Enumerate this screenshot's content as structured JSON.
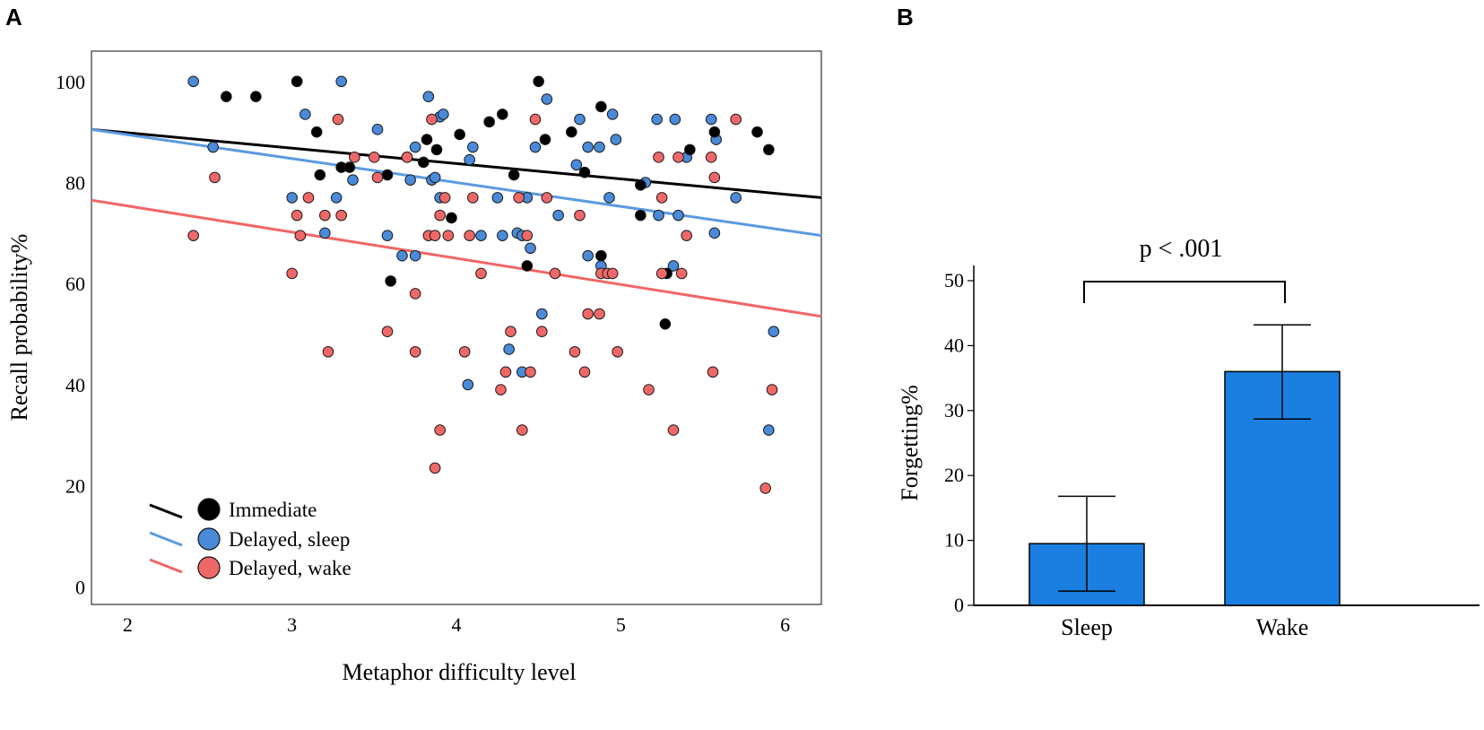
{
  "panels": {
    "a_label": "A",
    "b_label": "B"
  },
  "colors": {
    "immediate": "#000000",
    "sleep": "#4a8ad8",
    "wake": "#ef6868",
    "line_immediate": "#000000",
    "line_sleep": "#5b9be0",
    "line_wake": "#f26666",
    "bar": "#1a7fe0"
  },
  "chart_data": [
    {
      "type": "scatter",
      "title": "",
      "xlabel": "Metaphor difficulty level",
      "ylabel": "Recall probability%",
      "xlim": [
        1.78,
        6.22
      ],
      "ylim": [
        -3.5,
        106
      ],
      "xticks": [
        2,
        3,
        4,
        5,
        6
      ],
      "yticks": [
        0,
        20,
        40,
        60,
        80,
        100
      ],
      "legend": {
        "placement": "bottom-left",
        "entries": [
          "Immediate",
          "Delayed, sleep",
          "Delayed, wake"
        ]
      },
      "series": [
        {
          "name": "Immediate",
          "color_key": "immediate",
          "fit_line": {
            "x": [
              1.78,
              6.22
            ],
            "y": [
              90.5,
              77.0
            ],
            "color_key": "line_immediate"
          },
          "points": [
            [
              2.6,
              97
            ],
            [
              2.78,
              97
            ],
            [
              3.03,
              100
            ],
            [
              3.15,
              90
            ],
            [
              3.17,
              81.5
            ],
            [
              3.3,
              83
            ],
            [
              3.35,
              83
            ],
            [
              3.58,
              81.5
            ],
            [
              3.6,
              60.5
            ],
            [
              3.7,
              85
            ],
            [
              3.8,
              84
            ],
            [
              3.82,
              88.5
            ],
            [
              3.88,
              86.5
            ],
            [
              3.97,
              73
            ],
            [
              4.02,
              89.5
            ],
            [
              4.2,
              92
            ],
            [
              4.28,
              93.5
            ],
            [
              4.35,
              81.5
            ],
            [
              4.43,
              63.5
            ],
            [
              4.5,
              100
            ],
            [
              4.54,
              88.5
            ],
            [
              4.7,
              90
            ],
            [
              4.78,
              82
            ],
            [
              4.88,
              95
            ],
            [
              4.88,
              65.5
            ],
            [
              5.12,
              79.5
            ],
            [
              5.12,
              73.5
            ],
            [
              5.27,
              52
            ],
            [
              5.28,
              62
            ],
            [
              5.42,
              86.5
            ],
            [
              5.57,
              90
            ],
            [
              5.83,
              90
            ],
            [
              5.9,
              86.5
            ]
          ]
        },
        {
          "name": "Delayed, sleep",
          "color_key": "sleep",
          "fit_line": {
            "x": [
              1.78,
              6.22
            ],
            "y": [
              90.5,
              69.5
            ],
            "color_key": "line_sleep"
          },
          "points": [
            [
              2.4,
              100
            ],
            [
              2.52,
              87
            ],
            [
              3.0,
              77
            ],
            [
              3.03,
              100
            ],
            [
              3.08,
              93.5
            ],
            [
              3.2,
              70
            ],
            [
              3.27,
              77
            ],
            [
              3.3,
              100
            ],
            [
              3.37,
              80.5
            ],
            [
              3.52,
              90.5
            ],
            [
              3.58,
              69.5
            ],
            [
              3.67,
              65.5
            ],
            [
              3.72,
              80.5
            ],
            [
              3.75,
              87
            ],
            [
              3.75,
              65.5
            ],
            [
              3.83,
              97
            ],
            [
              3.85,
              80.5
            ],
            [
              3.87,
              81
            ],
            [
              3.9,
              77
            ],
            [
              3.9,
              93
            ],
            [
              3.92,
              93.5
            ],
            [
              4.08,
              84.5
            ],
            [
              4.1,
              87
            ],
            [
              4.15,
              69.5
            ],
            [
              4.25,
              77
            ],
            [
              4.28,
              69.5
            ],
            [
              4.32,
              47
            ],
            [
              4.37,
              70
            ],
            [
              4.4,
              69.5
            ],
            [
              4.4,
              42.5
            ],
            [
              4.43,
              77
            ],
            [
              4.45,
              67
            ],
            [
              4.48,
              87
            ],
            [
              4.52,
              54
            ],
            [
              4.55,
              96.5
            ],
            [
              4.62,
              73.5
            ],
            [
              4.73,
              83.5
            ],
            [
              4.75,
              92.5
            ],
            [
              4.8,
              87
            ],
            [
              4.8,
              65.5
            ],
            [
              4.87,
              87
            ],
            [
              4.88,
              63.5
            ],
            [
              4.93,
              77
            ],
            [
              4.95,
              93.5
            ],
            [
              4.97,
              88.5
            ],
            [
              5.15,
              80
            ],
            [
              5.22,
              92.5
            ],
            [
              5.23,
              73.5
            ],
            [
              5.32,
              63.5
            ],
            [
              5.33,
              92.5
            ],
            [
              5.35,
              73.5
            ],
            [
              5.4,
              85
            ],
            [
              5.55,
              92.5
            ],
            [
              5.57,
              70
            ],
            [
              5.58,
              88.5
            ],
            [
              5.7,
              77
            ],
            [
              5.9,
              31
            ],
            [
              5.93,
              50.5
            ],
            [
              4.07,
              40
            ]
          ]
        },
        {
          "name": "Delayed, wake",
          "color_key": "wake",
          "fit_line": {
            "x": [
              1.78,
              6.22
            ],
            "y": [
              76.5,
              53.5
            ],
            "color_key": "line_wake"
          },
          "points": [
            [
              2.4,
              69.5
            ],
            [
              2.53,
              81
            ],
            [
              3.0,
              62
            ],
            [
              3.03,
              73.5
            ],
            [
              3.05,
              69.5
            ],
            [
              3.1,
              77
            ],
            [
              3.2,
              73.5
            ],
            [
              3.22,
              46.5
            ],
            [
              3.28,
              92.5
            ],
            [
              3.3,
              73.5
            ],
            [
              3.38,
              85
            ],
            [
              3.5,
              85
            ],
            [
              3.52,
              81
            ],
            [
              3.58,
              50.5
            ],
            [
              3.7,
              85
            ],
            [
              3.75,
              58
            ],
            [
              3.75,
              46.5
            ],
            [
              3.83,
              69.5
            ],
            [
              3.85,
              92.5
            ],
            [
              3.87,
              69.5
            ],
            [
              3.87,
              23.5
            ],
            [
              3.9,
              31
            ],
            [
              3.9,
              73.5
            ],
            [
              3.93,
              77
            ],
            [
              3.95,
              69.5
            ],
            [
              4.05,
              46.5
            ],
            [
              4.08,
              69.5
            ],
            [
              4.1,
              77
            ],
            [
              4.15,
              62
            ],
            [
              4.27,
              39
            ],
            [
              4.3,
              42.5
            ],
            [
              4.33,
              50.5
            ],
            [
              4.38,
              77
            ],
            [
              4.4,
              31
            ],
            [
              4.43,
              69.5
            ],
            [
              4.45,
              42.5
            ],
            [
              4.48,
              92.5
            ],
            [
              4.52,
              50.5
            ],
            [
              4.55,
              77
            ],
            [
              4.6,
              62
            ],
            [
              4.72,
              46.5
            ],
            [
              4.75,
              73.5
            ],
            [
              4.78,
              42.5
            ],
            [
              4.8,
              54
            ],
            [
              4.87,
              54
            ],
            [
              4.88,
              62
            ],
            [
              4.92,
              62
            ],
            [
              4.95,
              62
            ],
            [
              4.98,
              46.5
            ],
            [
              5.17,
              39
            ],
            [
              5.23,
              85
            ],
            [
              5.25,
              62
            ],
            [
              5.25,
              77
            ],
            [
              5.32,
              31
            ],
            [
              5.35,
              85
            ],
            [
              5.37,
              62
            ],
            [
              5.4,
              69.5
            ],
            [
              5.55,
              85
            ],
            [
              5.56,
              42.5
            ],
            [
              5.57,
              81
            ],
            [
              5.7,
              92.5
            ],
            [
              5.88,
              19.5
            ],
            [
              5.92,
              39
            ]
          ]
        }
      ]
    },
    {
      "type": "bar",
      "title": "",
      "xlabel": "",
      "ylabel": "Forgetting%",
      "categories": [
        "Sleep",
        "Wake"
      ],
      "values": [
        9.5,
        36
      ],
      "error_low": [
        2.2,
        28.7
      ],
      "error_high": [
        16.8,
        43.2
      ],
      "ylim": [
        0,
        51.5
      ],
      "yticks": [
        0,
        10,
        20,
        30,
        40,
        50
      ],
      "annotation": "p < .001"
    }
  ]
}
